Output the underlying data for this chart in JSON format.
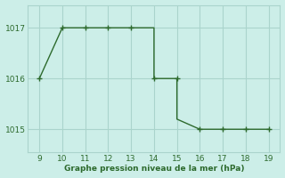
{
  "line_x": [
    9,
    10,
    11,
    12,
    13,
    14,
    14,
    15,
    15,
    16,
    16,
    17,
    18,
    19
  ],
  "line_y": [
    1016.0,
    1017.0,
    1017.0,
    1017.0,
    1017.0,
    1017.0,
    1016.0,
    1016.0,
    1015.2,
    1015.0,
    1015.0,
    1015.0,
    1015.0,
    1015.0
  ],
  "marker_x": [
    9,
    10,
    11,
    12,
    13,
    14,
    15,
    16,
    17,
    18,
    19
  ],
  "marker_y": [
    1016.0,
    1017.0,
    1017.0,
    1017.0,
    1017.0,
    1016.0,
    1016.0,
    1015.0,
    1015.0,
    1015.0,
    1015.0
  ],
  "line_color": "#2d6a2d",
  "bg_color": "#cceee8",
  "grid_color": "#aad4cc",
  "xlabel": "Graphe pression niveau de la mer (hPa)",
  "xlim": [
    8.5,
    19.5
  ],
  "ylim": [
    1014.55,
    1017.45
  ],
  "yticks": [
    1015,
    1016,
    1017
  ],
  "xticks": [
    9,
    10,
    11,
    12,
    13,
    14,
    15,
    16,
    17,
    18,
    19
  ]
}
